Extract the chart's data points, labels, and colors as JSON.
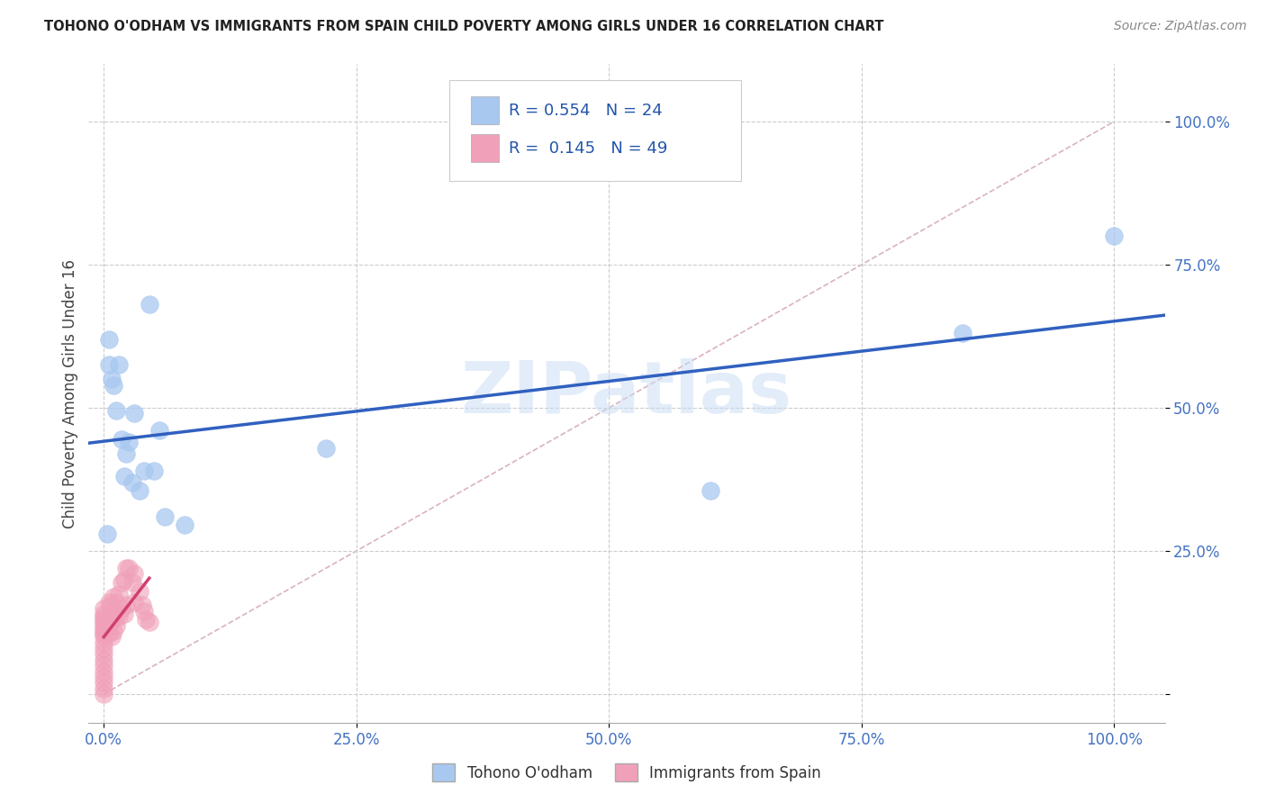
{
  "title": "TOHONO O'ODHAM VS IMMIGRANTS FROM SPAIN CHILD POVERTY AMONG GIRLS UNDER 16 CORRELATION CHART",
  "source": "Source: ZipAtlas.com",
  "ylabel": "Child Poverty Among Girls Under 16",
  "watermark": "ZIPatlas",
  "legend_label1": "Tohono O'odham",
  "legend_label2": "Immigrants from Spain",
  "R1": 0.554,
  "N1": 24,
  "R2": 0.145,
  "N2": 49,
  "color1": "#A8C8F0",
  "color2": "#F0A0B8",
  "trend_color1": "#3060C0",
  "trend_color2": "#D04070",
  "diag_color": "#D0A0B0",
  "tohono_x": [
    0.003,
    0.005,
    0.005,
    0.008,
    0.01,
    0.012,
    0.015,
    0.018,
    0.02,
    0.022,
    0.025,
    0.028,
    0.03,
    0.035,
    0.04,
    0.045,
    0.05,
    0.055,
    0.06,
    0.08,
    0.22,
    0.6,
    0.85,
    1.0
  ],
  "tohono_y": [
    0.28,
    0.575,
    0.62,
    0.55,
    0.54,
    0.495,
    0.575,
    0.445,
    0.38,
    0.42,
    0.44,
    0.37,
    0.49,
    0.355,
    0.39,
    0.68,
    0.39,
    0.46,
    0.31,
    0.295,
    0.43,
    0.355,
    0.63,
    0.8
  ],
  "spain_x": [
    0.0,
    0.0,
    0.0,
    0.0,
    0.0,
    0.0,
    0.0,
    0.0,
    0.0,
    0.0,
    0.0,
    0.0,
    0.0,
    0.0,
    0.0,
    0.0,
    0.0,
    0.0,
    0.0,
    0.0,
    0.005,
    0.005,
    0.005,
    0.007,
    0.007,
    0.008,
    0.008,
    0.01,
    0.01,
    0.01,
    0.012,
    0.012,
    0.015,
    0.015,
    0.018,
    0.018,
    0.02,
    0.02,
    0.022,
    0.022,
    0.025,
    0.028,
    0.03,
    0.03,
    0.035,
    0.038,
    0.04,
    0.042,
    0.045
  ],
  "spain_y": [
    0.0,
    0.01,
    0.02,
    0.03,
    0.04,
    0.05,
    0.06,
    0.07,
    0.08,
    0.09,
    0.1,
    0.105,
    0.11,
    0.115,
    0.12,
    0.125,
    0.13,
    0.135,
    0.14,
    0.15,
    0.105,
    0.12,
    0.16,
    0.13,
    0.155,
    0.1,
    0.14,
    0.11,
    0.13,
    0.17,
    0.12,
    0.16,
    0.135,
    0.175,
    0.15,
    0.195,
    0.14,
    0.2,
    0.155,
    0.22,
    0.22,
    0.195,
    0.16,
    0.21,
    0.18,
    0.155,
    0.145,
    0.13,
    0.125
  ],
  "xlim": [
    -0.015,
    1.05
  ],
  "ylim": [
    -0.05,
    1.1
  ],
  "xticks": [
    0.0,
    0.25,
    0.5,
    0.75,
    1.0
  ],
  "yticks": [
    0.0,
    0.25,
    0.5,
    0.75,
    1.0
  ],
  "xticklabels": [
    "0.0%",
    "25.0%",
    "50.0%",
    "75.0%",
    "100.0%"
  ],
  "yticklabels": [
    "",
    "25.0%",
    "50.0%",
    "75.0%",
    "100.0%"
  ],
  "background_color": "#FFFFFF",
  "grid_color": "#CCCCCC"
}
